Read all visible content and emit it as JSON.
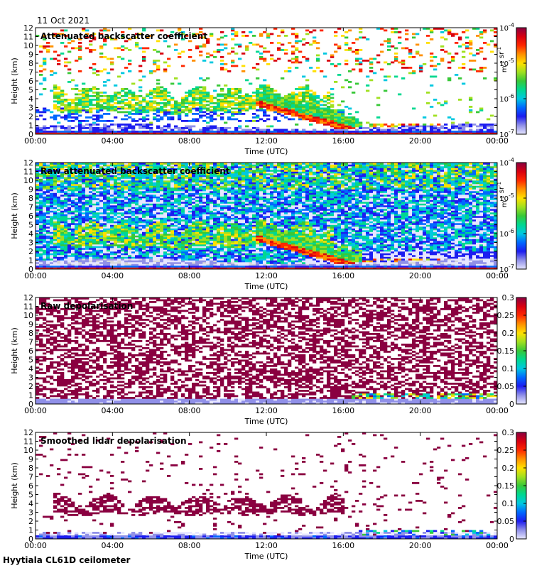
{
  "date": "11 Oct 2021",
  "site": "Hyytiala CL61D ceilometer",
  "colors": {
    "colormap": [
      "#e6e6ff",
      "#9090e8",
      "#1c1cf0",
      "#0068ff",
      "#00c8e0",
      "#00d890",
      "#38c838",
      "#a0e020",
      "#ffe000",
      "#ff9000",
      "#ff2800",
      "#d80010",
      "#8a0040"
    ],
    "background": "#ffffff",
    "clear_air": "#d8d8d8"
  },
  "chart_data": [
    {
      "type": "heatmap",
      "title": "Attenuated backscatter coefficient",
      "xlabel": "Time (UTC)",
      "ylabel": "Height (km)",
      "xticks": [
        "00:00",
        "04:00",
        "08:00",
        "12:00",
        "16:00",
        "20:00",
        "00:00"
      ],
      "yticks": [
        "0",
        "1",
        "2",
        "3",
        "4",
        "5",
        "6",
        "7",
        "8",
        "9",
        "10",
        "11",
        "12"
      ],
      "xlim": [
        0,
        24
      ],
      "ylim": [
        0,
        12
      ],
      "colorbar": {
        "scale": "log",
        "range": [
          1e-07,
          0.0001
        ],
        "ticks": [
          "10-7",
          "10-6",
          "10-5",
          "10-4"
        ],
        "unit": "m-1 sr-1"
      },
      "features": {
        "boundary_layer_top_km": 0.5,
        "mid_level_cloud": {
          "start_h": 1.0,
          "end_h": 15.5,
          "base_km": 2.5,
          "top_km": 5.5
        },
        "descending_layer": {
          "start_h": 11.5,
          "end_h": 17.0,
          "from_km": 3.5,
          "to_km": 0.2
        },
        "low_cloud": {
          "start_h": 16.5,
          "end_h": 24,
          "top_km": 1.2
        }
      }
    },
    {
      "type": "heatmap",
      "title": "Raw attenuated backscatter coefficient",
      "xlabel": "Time (UTC)",
      "ylabel": "Height (km)",
      "xticks": [
        "00:00",
        "04:00",
        "08:00",
        "12:00",
        "16:00",
        "20:00",
        "00:00"
      ],
      "yticks": [
        "0",
        "1",
        "2",
        "3",
        "4",
        "5",
        "6",
        "7",
        "8",
        "9",
        "10",
        "11",
        "12"
      ],
      "xlim": [
        0,
        24
      ],
      "ylim": [
        0,
        12
      ],
      "colorbar": {
        "scale": "log",
        "range": [
          1e-07,
          0.0001
        ],
        "ticks": [
          "10-7",
          "10-6",
          "10-5",
          "10-4"
        ],
        "unit": "m-1 sr-1"
      },
      "features": {
        "noise_background": "speckled",
        "mid_level_cloud": {
          "start_h": 1.0,
          "end_h": 15.5,
          "base_km": 2.5,
          "top_km": 5.0
        },
        "descending_layer": {
          "start_h": 11.5,
          "end_h": 17.0,
          "from_km": 3.5,
          "to_km": 0.2
        }
      }
    },
    {
      "type": "heatmap",
      "title": "Raw depolarisation",
      "xlabel": "Time (UTC)",
      "ylabel": "Height (km)",
      "xticks": [
        "00:00",
        "04:00",
        "08:00",
        "12:00",
        "16:00",
        "20:00",
        "00:00"
      ],
      "yticks": [
        "0",
        "1",
        "2",
        "3",
        "4",
        "5",
        "6",
        "7",
        "8",
        "9",
        "10",
        "11",
        "12"
      ],
      "xlim": [
        0,
        24
      ],
      "ylim": [
        0,
        12
      ],
      "colorbar": {
        "scale": "linear",
        "range": [
          0,
          0.3
        ],
        "ticks": [
          "0",
          "0.05",
          "0.1",
          "0.15",
          "0.2",
          "0.25",
          "0.3"
        ],
        "unit": ""
      },
      "features": {
        "noise_background": "dense",
        "low_level_band_top_km": 0.6
      }
    },
    {
      "type": "heatmap",
      "title": "Smoothed lidar depolarisation",
      "xlabel": "Time (UTC)",
      "ylabel": "Height (km)",
      "xticks": [
        "00:00",
        "04:00",
        "08:00",
        "12:00",
        "16:00",
        "20:00",
        "00:00"
      ],
      "yticks": [
        "0",
        "1",
        "2",
        "3",
        "4",
        "5",
        "6",
        "7",
        "8",
        "9",
        "10",
        "11",
        "12"
      ],
      "xlim": [
        0,
        24
      ],
      "ylim": [
        0,
        12
      ],
      "colorbar": {
        "scale": "linear",
        "range": [
          0,
          0.3
        ],
        "ticks": [
          "0",
          "0.05",
          "0.1",
          "0.15",
          "0.2",
          "0.25",
          "0.3"
        ],
        "unit": ""
      },
      "features": {
        "noise_background": "sparse",
        "mid_level_cloud": {
          "start_h": 1.0,
          "end_h": 16.0,
          "base_km": 2.8,
          "top_km": 5.5
        },
        "low_level_band_top_km": 0.8
      }
    }
  ]
}
